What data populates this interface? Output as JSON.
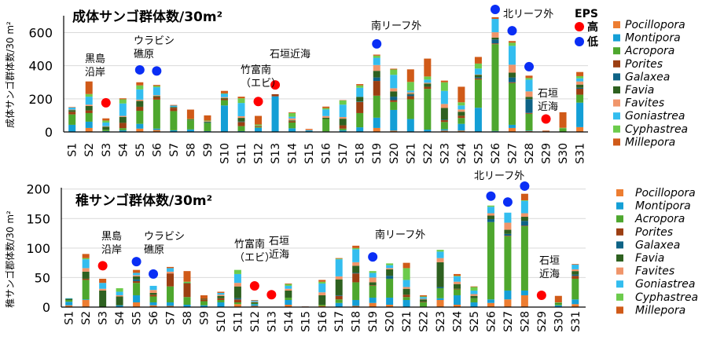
{
  "chart_data": [
    {
      "type": "bar",
      "stacked": true,
      "title": "成体サンゴ群体数/30m²",
      "ylabel": "成体サンゴ群体数/30 m²",
      "xlabel": "",
      "ylim": [
        0,
        700
      ],
      "yticks": [
        "0",
        "200",
        "400",
        "600"
      ],
      "ytick_values": [
        0,
        200,
        400,
        600
      ],
      "grid": true,
      "legend_placement": "right",
      "categories": [
        "S1",
        "S2",
        "S3",
        "S4",
        "S5",
        "S6",
        "S7",
        "S8",
        "S9",
        "S10",
        "S11",
        "S12",
        "S13",
        "S14",
        "S15",
        "S16",
        "S17",
        "S18",
        "S19",
        "S20",
        "S21",
        "S22",
        "S23",
        "S24",
        "S25",
        "S26",
        "S27",
        "S28",
        "S29",
        "S30",
        "S31"
      ],
      "series_names": [
        "Pocillopora",
        "Montipora",
        "Acropora",
        "Porites",
        "Galaxea",
        "Favia",
        "Favites",
        "Goniastrea",
        "Cyphastrea",
        "Millepora"
      ],
      "stacks_by_station": [
        [
          0,
          43,
          63,
          16,
          0,
          10,
          3,
          12,
          0,
          3
        ],
        [
          24,
          38,
          52,
          16,
          0,
          27,
          8,
          48,
          16,
          76
        ],
        [
          0,
          5,
          8,
          0,
          0,
          19,
          3,
          22,
          12,
          13
        ],
        [
          0,
          10,
          13,
          32,
          0,
          36,
          6,
          75,
          25,
          6
        ],
        [
          20,
          29,
          79,
          24,
          0,
          35,
          8,
          62,
          24,
          19
        ],
        [
          12,
          8,
          175,
          16,
          0,
          6,
          5,
          48,
          8,
          6
        ],
        [
          0,
          10,
          116,
          20,
          0,
          5,
          0,
          8,
          0,
          4
        ],
        [
          0,
          15,
          55,
          0,
          0,
          5,
          0,
          0,
          3,
          57
        ],
        [
          0,
          5,
          50,
          0,
          3,
          5,
          3,
          0,
          3,
          31
        ],
        [
          0,
          160,
          32,
          8,
          0,
          5,
          5,
          20,
          3,
          15
        ],
        [
          0,
          5,
          30,
          25,
          3,
          22,
          10,
          80,
          28,
          10
        ],
        [
          0,
          25,
          5,
          3,
          0,
          3,
          3,
          0,
          6,
          52
        ],
        [
          0,
          215,
          0,
          13,
          0,
          0,
          0,
          0,
          0,
          0
        ],
        [
          0,
          22,
          35,
          8,
          0,
          5,
          12,
          10,
          22,
          4
        ],
        [
          0,
          10,
          0,
          0,
          0,
          0,
          3,
          0,
          0,
          5
        ],
        [
          0,
          3,
          75,
          0,
          0,
          8,
          10,
          40,
          8,
          9
        ],
        [
          0,
          10,
          10,
          20,
          0,
          40,
          10,
          75,
          25,
          2
        ],
        [
          0,
          28,
          86,
          67,
          3,
          28,
          0,
          55,
          14,
          8
        ],
        [
          24,
          62,
          133,
          89,
          21,
          40,
          35,
          44,
          13,
          6
        ],
        [
          8,
          125,
          48,
          11,
          21,
          32,
          19,
          81,
          32,
          5
        ],
        [
          0,
          78,
          119,
          19,
          10,
          5,
          8,
          11,
          52,
          76
        ],
        [
          0,
          14,
          246,
          13,
          0,
          19,
          5,
          19,
          19,
          108
        ],
        [
          8,
          8,
          44,
          11,
          3,
          71,
          24,
          79,
          52,
          10
        ],
        [
          8,
          41,
          35,
          14,
          0,
          24,
          14,
          24,
          19,
          94
        ],
        [
          0,
          146,
          170,
          8,
          6,
          14,
          3,
          36,
          30,
          40
        ],
        [
          3,
          3,
          524,
          5,
          24,
          11,
          32,
          81,
          0,
          10
        ],
        [
          24,
          19,
          252,
          5,
          29,
          29,
          48,
          114,
          19,
          10
        ],
        [
          5,
          3,
          102,
          5,
          83,
          14,
          33,
          71,
          10,
          14
        ],
        [
          0,
          0,
          0,
          3,
          0,
          0,
          0,
          0,
          0,
          5
        ],
        [
          0,
          0,
          22,
          0,
          0,
          0,
          0,
          0,
          3,
          94
        ],
        [
          29,
          148,
          48,
          36,
          6,
          19,
          19,
          19,
          13,
          25
        ]
      ],
      "eps_markers": [
        {
          "station": "S3",
          "level": "high",
          "value": 176
        },
        {
          "station": "S5",
          "level": "low",
          "value": 375
        },
        {
          "station": "S6",
          "level": "low",
          "value": 368
        },
        {
          "station": "S12",
          "level": "high",
          "value": 184
        },
        {
          "station": "S13",
          "level": "high",
          "value": 284
        },
        {
          "station": "S19",
          "level": "low",
          "value": 532
        },
        {
          "station": "S26",
          "level": "low",
          "value": 740
        },
        {
          "station": "S27",
          "level": "low",
          "value": 611
        },
        {
          "station": "S28",
          "level": "low",
          "value": 394
        },
        {
          "station": "S29",
          "level": "high",
          "value": 78
        }
      ],
      "annotations": [
        {
          "lines": [
            "黒島",
            "沿岸"
          ]
        },
        {
          "lines": [
            "ウラビシ",
            "礁原"
          ]
        },
        {
          "lines": [
            "竹富南",
            "（エビ）"
          ]
        },
        {
          "lines": [
            "石垣近海"
          ]
        },
        {
          "lines": [
            "南リーフ外"
          ]
        },
        {
          "lines": [
            "北リーフ外"
          ]
        },
        {
          "lines": [
            "石垣",
            "近海"
          ]
        }
      ],
      "eps_legend": {
        "title": "EPS",
        "high": "高",
        "low": "低"
      }
    },
    {
      "type": "bar",
      "stacked": true,
      "title": "稚サンゴ群体数/30m²",
      "ylabel": "稚サンゴ郡体数/30 m²",
      "xlabel": "",
      "ylim": [
        0,
        200
      ],
      "yticks": [
        "0",
        "50",
        "100",
        "150",
        "200"
      ],
      "ytick_values": [
        0,
        50,
        100,
        150,
        200
      ],
      "grid": true,
      "legend_placement": "right",
      "categories": [
        "S1",
        "S2",
        "S3",
        "S4",
        "S5",
        "S6",
        "S7",
        "S8",
        "S9",
        "S10",
        "S11",
        "S12",
        "S13",
        "S14",
        "S15",
        "S16",
        "S17",
        "S18",
        "S19",
        "S20",
        "S21",
        "S22",
        "S23",
        "S24",
        "S25",
        "S26",
        "S27",
        "S28",
        "S29",
        "S30",
        "S31"
      ],
      "series_names": [
        "Pocillopora",
        "Montipora",
        "Acropora",
        "Porites",
        "Galaxea",
        "Favia",
        "Favites",
        "Goniastrea",
        "Cyphastrea",
        "Millepora"
      ],
      "stacks_by_station": [
        [
          3,
          6,
          3,
          0,
          0,
          2,
          0,
          1,
          0,
          0
        ],
        [
          12,
          1,
          33,
          2,
          0,
          12,
          6,
          15,
          2,
          7
        ],
        [
          0,
          0,
          0,
          0,
          0,
          28,
          3,
          10,
          0,
          7
        ],
        [
          0,
          3,
          0,
          0,
          0,
          15,
          2,
          6,
          6,
          0
        ],
        [
          8,
          12,
          21,
          3,
          3,
          5,
          2,
          4,
          0,
          5
        ],
        [
          3,
          5,
          10,
          3,
          0,
          3,
          5,
          7,
          0,
          0
        ],
        [
          2,
          6,
          27,
          22,
          0,
          0,
          3,
          6,
          0,
          2
        ],
        [
          0,
          4,
          13,
          23,
          0,
          1,
          0,
          0,
          2,
          18
        ],
        [
          0,
          3,
          7,
          3,
          0,
          1,
          0,
          0,
          0,
          6
        ],
        [
          0,
          8,
          4,
          3,
          0,
          4,
          2,
          3,
          0,
          2
        ],
        [
          5,
          0,
          3,
          5,
          2,
          20,
          6,
          15,
          7,
          0
        ],
        [
          2,
          3,
          1,
          0,
          0,
          2,
          1,
          2,
          0,
          1
        ],
        [
          0,
          0,
          0,
          0,
          0,
          0,
          0,
          0,
          0,
          0
        ],
        [
          4,
          8,
          4,
          0,
          0,
          12,
          3,
          5,
          3,
          1
        ],
        [
          0,
          0,
          0,
          1,
          0,
          0,
          0,
          0,
          0,
          0
        ],
        [
          2,
          0,
          2,
          0,
          0,
          16,
          5,
          15,
          3,
          3
        ],
        [
          0,
          7,
          6,
          6,
          1,
          27,
          5,
          29,
          1,
          1
        ],
        [
          2,
          10,
          30,
          15,
          1,
          12,
          6,
          22,
          2,
          4
        ],
        [
          7,
          9,
          20,
          1,
          0,
          5,
          8,
          8,
          3,
          0
        ],
        [
          4,
          12,
          32,
          0,
          5,
          11,
          2,
          5,
          3,
          0
        ],
        [
          0,
          12,
          5,
          4,
          0,
          10,
          3,
          12,
          20,
          9
        ],
        [
          0,
          0,
          8,
          1,
          0,
          4,
          1,
          3,
          1,
          2
        ],
        [
          12,
          3,
          17,
          0,
          2,
          42,
          7,
          11,
          3,
          0
        ],
        [
          4,
          16,
          10,
          1,
          0,
          8,
          4,
          9,
          1,
          3
        ],
        [
          0,
          8,
          7,
          0,
          0,
          4,
          3,
          6,
          6,
          1
        ],
        [
          7,
          6,
          131,
          0,
          5,
          6,
          4,
          11,
          2,
          0
        ],
        [
          13,
          15,
          92,
          1,
          3,
          7,
          12,
          17,
          0,
          0
        ],
        [
          20,
          8,
          109,
          1,
          8,
          7,
          6,
          21,
          1,
          11
        ],
        [
          0,
          0,
          0,
          0,
          0,
          0,
          0,
          0,
          0,
          0
        ],
        [
          0,
          3,
          3,
          0,
          0,
          1,
          0,
          0,
          1,
          11
        ],
        [
          5,
          8,
          35,
          5,
          2,
          6,
          3,
          8,
          0,
          1
        ]
      ],
      "eps_markers": [
        {
          "station": "S3",
          "level": "high",
          "value": 70
        },
        {
          "station": "S5",
          "level": "low",
          "value": 77
        },
        {
          "station": "S6",
          "level": "low",
          "value": 56
        },
        {
          "station": "S12",
          "level": "high",
          "value": 36
        },
        {
          "station": "S13",
          "level": "high",
          "value": 21
        },
        {
          "station": "S19",
          "level": "low",
          "value": 85
        },
        {
          "station": "S26",
          "level": "low",
          "value": 188
        },
        {
          "station": "S27",
          "level": "low",
          "value": 178
        },
        {
          "station": "S28",
          "level": "low",
          "value": 205
        },
        {
          "station": "S29",
          "level": "high",
          "value": 20
        }
      ],
      "annotations": [
        {
          "lines": [
            "黒島",
            "沿岸"
          ]
        },
        {
          "lines": [
            "ウラビシ",
            "礁原"
          ]
        },
        {
          "lines": [
            "竹富南",
            "（エビ）"
          ]
        },
        {
          "lines": [
            "石垣",
            "近海"
          ]
        },
        {
          "lines": [
            "南リーフ外"
          ]
        },
        {
          "lines": [
            "北リーフ外"
          ]
        },
        {
          "lines": [
            "石垣",
            "近海"
          ]
        }
      ]
    }
  ],
  "colors": {
    "series": [
      "#ED7D31",
      "#149FD6",
      "#4EA72E",
      "#9C3F12",
      "#0E6386",
      "#2E6120",
      "#F0956A",
      "#33BDEF",
      "#6CCB4C",
      "#D05A18"
    ],
    "eps_high": "#FF0000",
    "eps_low": "#0A2EF5",
    "grid": "#D9D9D9"
  }
}
